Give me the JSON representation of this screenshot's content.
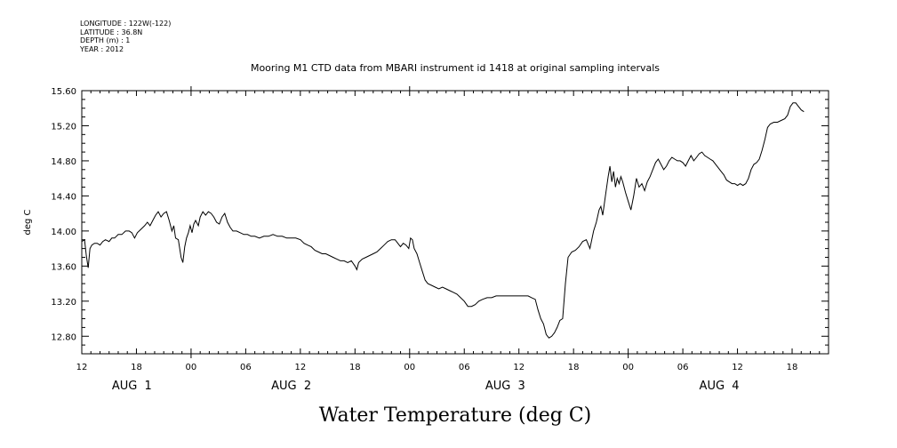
{
  "header": {
    "longitude": "LONGITUDE : 122W(-122)",
    "latitude": "LATITUDE : 36.8N",
    "depth": "DEPTH (m) : 1",
    "year": "YEAR : 2012"
  },
  "chart_data": {
    "type": "line",
    "title": "Mooring M1 CTD data from MBARI instrument id 1418 at original sampling intervals",
    "xlabel": "Water Temperature (deg C)",
    "ylabel": "deg C",
    "ylim": [
      12.6,
      15.6
    ],
    "xlim_hours": [
      0,
      82
    ],
    "x_unit": "hours since AUG 1 12:00",
    "y_ticks": [
      "12.80",
      "13.20",
      "13.60",
      "14.00",
      "14.40",
      "14.80",
      "15.20",
      "15.60"
    ],
    "x_ticks": [
      {
        "label": "12",
        "hour": 0
      },
      {
        "label": "18",
        "hour": 6
      },
      {
        "label": "00",
        "hour": 12
      },
      {
        "label": "06",
        "hour": 18
      },
      {
        "label": "12",
        "hour": 24
      },
      {
        "label": "18",
        "hour": 30
      },
      {
        "label": "00",
        "hour": 36
      },
      {
        "label": "06",
        "hour": 42
      },
      {
        "label": "12",
        "hour": 48
      },
      {
        "label": "18",
        "hour": 54
      },
      {
        "label": "00",
        "hour": 60
      },
      {
        "label": "06",
        "hour": 66
      },
      {
        "label": "12",
        "hour": 72
      },
      {
        "label": "18",
        "hour": 78
      }
    ],
    "day_labels": [
      {
        "label": "AUG  1",
        "hour": 5.5
      },
      {
        "label": "AUG  2",
        "hour": 23
      },
      {
        "label": "AUG  3",
        "hour": 46.5
      },
      {
        "label": "AUG  4",
        "hour": 70
      }
    ],
    "series": [
      {
        "values": [
          [
            0.0,
            13.88
          ],
          [
            0.3,
            13.9
          ],
          [
            0.5,
            13.72
          ],
          [
            0.7,
            13.58
          ],
          [
            0.9,
            13.8
          ],
          [
            1.1,
            13.84
          ],
          [
            1.4,
            13.86
          ],
          [
            1.7,
            13.86
          ],
          [
            2.0,
            13.84
          ],
          [
            2.3,
            13.88
          ],
          [
            2.6,
            13.9
          ],
          [
            3.0,
            13.88
          ],
          [
            3.3,
            13.92
          ],
          [
            3.6,
            13.92
          ],
          [
            4.0,
            13.96
          ],
          [
            4.4,
            13.96
          ],
          [
            4.8,
            14.0
          ],
          [
            5.2,
            14.0
          ],
          [
            5.5,
            13.98
          ],
          [
            5.8,
            13.92
          ],
          [
            6.1,
            13.98
          ],
          [
            6.5,
            14.02
          ],
          [
            6.9,
            14.06
          ],
          [
            7.2,
            14.1
          ],
          [
            7.5,
            14.06
          ],
          [
            7.8,
            14.12
          ],
          [
            8.1,
            14.18
          ],
          [
            8.4,
            14.22
          ],
          [
            8.7,
            14.16
          ],
          [
            9.0,
            14.2
          ],
          [
            9.3,
            14.22
          ],
          [
            9.6,
            14.12
          ],
          [
            9.9,
            14.0
          ],
          [
            10.1,
            14.06
          ],
          [
            10.3,
            13.92
          ],
          [
            10.6,
            13.9
          ],
          [
            10.9,
            13.7
          ],
          [
            11.1,
            13.64
          ],
          [
            11.3,
            13.82
          ],
          [
            11.5,
            13.92
          ],
          [
            11.7,
            13.98
          ],
          [
            11.9,
            14.06
          ],
          [
            12.1,
            13.98
          ],
          [
            12.3,
            14.08
          ],
          [
            12.5,
            14.12
          ],
          [
            12.8,
            14.06
          ],
          [
            13.0,
            14.16
          ],
          [
            13.3,
            14.22
          ],
          [
            13.6,
            14.18
          ],
          [
            13.9,
            14.22
          ],
          [
            14.2,
            14.2
          ],
          [
            14.5,
            14.16
          ],
          [
            14.8,
            14.1
          ],
          [
            15.1,
            14.08
          ],
          [
            15.4,
            14.16
          ],
          [
            15.7,
            14.2
          ],
          [
            16.0,
            14.1
          ],
          [
            16.3,
            14.04
          ],
          [
            16.6,
            14.0
          ],
          [
            17.0,
            14.0
          ],
          [
            17.4,
            13.98
          ],
          [
            17.8,
            13.96
          ],
          [
            18.2,
            13.96
          ],
          [
            18.6,
            13.94
          ],
          [
            19.0,
            13.94
          ],
          [
            19.5,
            13.92
          ],
          [
            20.0,
            13.94
          ],
          [
            20.5,
            13.94
          ],
          [
            21.0,
            13.96
          ],
          [
            21.5,
            13.94
          ],
          [
            22.0,
            13.94
          ],
          [
            22.5,
            13.92
          ],
          [
            23.0,
            13.92
          ],
          [
            23.5,
            13.92
          ],
          [
            24.0,
            13.9
          ],
          [
            24.4,
            13.86
          ],
          [
            24.8,
            13.84
          ],
          [
            25.2,
            13.82
          ],
          [
            25.6,
            13.78
          ],
          [
            26.0,
            13.76
          ],
          [
            26.4,
            13.74
          ],
          [
            26.8,
            13.74
          ],
          [
            27.2,
            13.72
          ],
          [
            27.6,
            13.7
          ],
          [
            28.0,
            13.68
          ],
          [
            28.4,
            13.66
          ],
          [
            28.8,
            13.66
          ],
          [
            29.2,
            13.64
          ],
          [
            29.6,
            13.66
          ],
          [
            30.0,
            13.6
          ],
          [
            30.2,
            13.56
          ],
          [
            30.4,
            13.64
          ],
          [
            30.8,
            13.68
          ],
          [
            31.2,
            13.7
          ],
          [
            31.6,
            13.72
          ],
          [
            32.0,
            13.74
          ],
          [
            32.4,
            13.76
          ],
          [
            32.8,
            13.8
          ],
          [
            33.2,
            13.84
          ],
          [
            33.6,
            13.88
          ],
          [
            34.0,
            13.9
          ],
          [
            34.4,
            13.9
          ],
          [
            34.7,
            13.86
          ],
          [
            35.0,
            13.82
          ],
          [
            35.3,
            13.86
          ],
          [
            35.6,
            13.84
          ],
          [
            35.9,
            13.8
          ],
          [
            36.1,
            13.92
          ],
          [
            36.3,
            13.9
          ],
          [
            36.5,
            13.8
          ],
          [
            36.8,
            13.74
          ],
          [
            37.1,
            13.64
          ],
          [
            37.4,
            13.54
          ],
          [
            37.7,
            13.44
          ],
          [
            38.0,
            13.4
          ],
          [
            38.4,
            13.38
          ],
          [
            38.8,
            13.36
          ],
          [
            39.2,
            13.34
          ],
          [
            39.6,
            13.36
          ],
          [
            40.0,
            13.34
          ],
          [
            40.4,
            13.32
          ],
          [
            40.8,
            13.3
          ],
          [
            41.2,
            13.28
          ],
          [
            41.6,
            13.24
          ],
          [
            42.0,
            13.2
          ],
          [
            42.4,
            13.14
          ],
          [
            42.8,
            13.14
          ],
          [
            43.2,
            13.16
          ],
          [
            43.6,
            13.2
          ],
          [
            44.0,
            13.22
          ],
          [
            44.5,
            13.24
          ],
          [
            45.0,
            13.24
          ],
          [
            45.5,
            13.26
          ],
          [
            46.0,
            13.26
          ],
          [
            46.5,
            13.26
          ],
          [
            47.0,
            13.26
          ],
          [
            47.5,
            13.26
          ],
          [
            48.0,
            13.26
          ],
          [
            48.5,
            13.26
          ],
          [
            49.0,
            13.26
          ],
          [
            49.4,
            13.24
          ],
          [
            49.8,
            13.22
          ],
          [
            50.1,
            13.1
          ],
          [
            50.4,
            13.0
          ],
          [
            50.7,
            12.94
          ],
          [
            51.0,
            12.82
          ],
          [
            51.3,
            12.78
          ],
          [
            51.6,
            12.8
          ],
          [
            51.9,
            12.84
          ],
          [
            52.2,
            12.9
          ],
          [
            52.5,
            12.98
          ],
          [
            52.8,
            13.0
          ],
          [
            53.1,
            13.4
          ],
          [
            53.4,
            13.7
          ],
          [
            53.8,
            13.76
          ],
          [
            54.2,
            13.78
          ],
          [
            54.6,
            13.82
          ],
          [
            55.0,
            13.88
          ],
          [
            55.4,
            13.9
          ],
          [
            55.8,
            13.8
          ],
          [
            56.2,
            14.0
          ],
          [
            56.5,
            14.1
          ],
          [
            56.8,
            14.24
          ],
          [
            57.0,
            14.28
          ],
          [
            57.2,
            14.18
          ],
          [
            57.5,
            14.4
          ],
          [
            57.8,
            14.62
          ],
          [
            58.0,
            14.74
          ],
          [
            58.2,
            14.56
          ],
          [
            58.4,
            14.68
          ],
          [
            58.6,
            14.5
          ],
          [
            58.8,
            14.6
          ],
          [
            59.0,
            14.54
          ],
          [
            59.2,
            14.62
          ],
          [
            59.4,
            14.56
          ],
          [
            59.7,
            14.44
          ],
          [
            60.0,
            14.34
          ],
          [
            60.3,
            14.24
          ],
          [
            60.6,
            14.4
          ],
          [
            60.9,
            14.6
          ],
          [
            61.2,
            14.5
          ],
          [
            61.5,
            14.54
          ],
          [
            61.8,
            14.46
          ],
          [
            62.1,
            14.56
          ],
          [
            62.4,
            14.62
          ],
          [
            62.7,
            14.7
          ],
          [
            63.0,
            14.78
          ],
          [
            63.3,
            14.82
          ],
          [
            63.6,
            14.76
          ],
          [
            63.9,
            14.7
          ],
          [
            64.2,
            14.74
          ],
          [
            64.5,
            14.8
          ],
          [
            64.8,
            14.84
          ],
          [
            65.1,
            14.82
          ],
          [
            65.4,
            14.8
          ],
          [
            65.7,
            14.8
          ],
          [
            66.0,
            14.78
          ],
          [
            66.3,
            14.74
          ],
          [
            66.6,
            14.8
          ],
          [
            66.9,
            14.86
          ],
          [
            67.2,
            14.8
          ],
          [
            67.5,
            14.84
          ],
          [
            67.8,
            14.88
          ],
          [
            68.1,
            14.9
          ],
          [
            68.4,
            14.86
          ],
          [
            68.7,
            14.84
          ],
          [
            69.0,
            14.82
          ],
          [
            69.3,
            14.8
          ],
          [
            69.6,
            14.76
          ],
          [
            69.9,
            14.72
          ],
          [
            70.2,
            14.68
          ],
          [
            70.5,
            14.64
          ],
          [
            70.8,
            14.58
          ],
          [
            71.1,
            14.56
          ],
          [
            71.4,
            14.54
          ],
          [
            71.7,
            14.54
          ],
          [
            72.0,
            14.52
          ],
          [
            72.3,
            14.54
          ],
          [
            72.6,
            14.52
          ],
          [
            72.9,
            14.54
          ],
          [
            73.2,
            14.6
          ],
          [
            73.5,
            14.7
          ],
          [
            73.8,
            14.76
          ],
          [
            74.1,
            14.78
          ],
          [
            74.4,
            14.82
          ],
          [
            74.7,
            14.92
          ],
          [
            75.0,
            15.04
          ],
          [
            75.3,
            15.18
          ],
          [
            75.6,
            15.22
          ],
          [
            76.0,
            15.24
          ],
          [
            76.4,
            15.24
          ],
          [
            76.8,
            15.26
          ],
          [
            77.2,
            15.28
          ],
          [
            77.5,
            15.32
          ],
          [
            77.8,
            15.42
          ],
          [
            78.1,
            15.46
          ],
          [
            78.4,
            15.46
          ],
          [
            78.7,
            15.42
          ],
          [
            79.0,
            15.38
          ],
          [
            79.3,
            15.36
          ]
        ]
      }
    ]
  }
}
